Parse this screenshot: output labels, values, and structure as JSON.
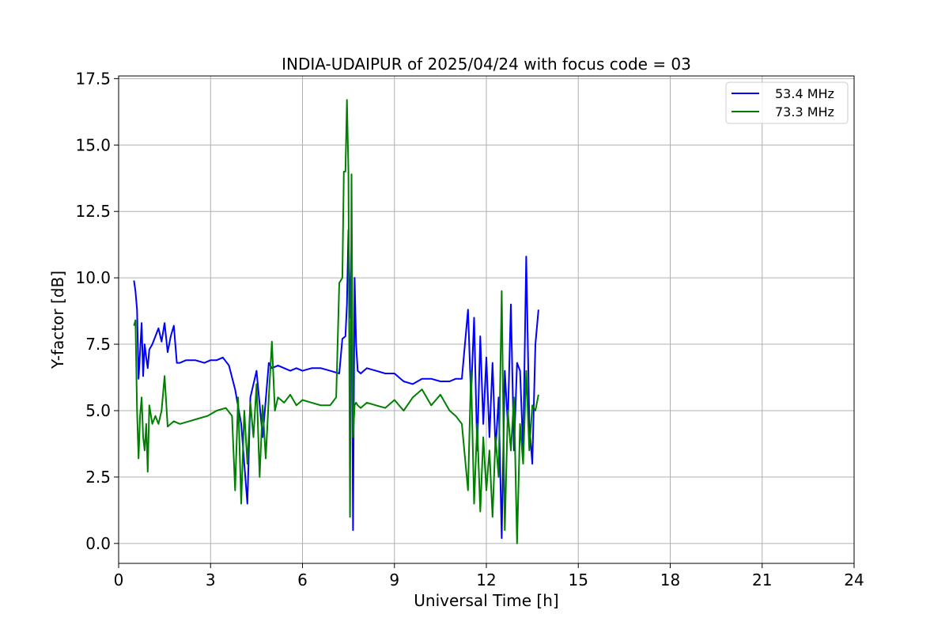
{
  "chart_data": {
    "type": "line",
    "title": "INDIA-UDAIPUR of 2025/04/24 with focus code = 03",
    "xlabel": "Universal Time [h]",
    "ylabel": "Y-factor [dB]",
    "xlim": [
      0,
      24
    ],
    "ylim": [
      -0.75,
      17.6
    ],
    "xticks": [
      0,
      3,
      6,
      9,
      12,
      15,
      18,
      21,
      24
    ],
    "xtick_labels": [
      "0",
      "3",
      "6",
      "9",
      "12",
      "15",
      "18",
      "21",
      "24"
    ],
    "yticks": [
      0.0,
      2.5,
      5.0,
      7.5,
      10.0,
      12.5,
      15.0,
      17.5
    ],
    "ytick_labels": [
      "0.0",
      "2.5",
      "5.0",
      "7.5",
      "10.0",
      "12.5",
      "15.0",
      "17.5"
    ],
    "grid": true,
    "legend_position": "top-right",
    "series": [
      {
        "name": "53.4 MHz",
        "color": "#0000ff",
        "x": [
          0.5,
          0.55,
          0.6,
          0.65,
          0.7,
          0.75,
          0.8,
          0.85,
          0.9,
          0.95,
          1.0,
          1.1,
          1.2,
          1.3,
          1.4,
          1.5,
          1.6,
          1.7,
          1.8,
          1.9,
          2.0,
          2.2,
          2.5,
          2.8,
          3.0,
          3.2,
          3.4,
          3.6,
          3.8,
          4.0,
          4.1,
          4.2,
          4.3,
          4.5,
          4.7,
          4.9,
          5.0,
          5.2,
          5.4,
          5.6,
          5.8,
          6.0,
          6.3,
          6.6,
          6.9,
          7.2,
          7.3,
          7.4,
          7.45,
          7.5,
          7.55,
          7.6,
          7.65,
          7.7,
          7.75,
          7.8,
          7.9,
          8.1,
          8.4,
          8.7,
          9.0,
          9.3,
          9.6,
          9.9,
          10.2,
          10.5,
          10.8,
          11.0,
          11.2,
          11.4,
          11.5,
          11.6,
          11.7,
          11.8,
          11.9,
          12.0,
          12.1,
          12.2,
          12.3,
          12.4,
          12.5,
          12.6,
          12.7,
          12.8,
          12.9,
          13.0,
          13.1,
          13.2,
          13.3,
          13.4,
          13.5,
          13.6,
          13.7
        ],
        "y": [
          9.9,
          9.5,
          8.8,
          6.2,
          7.2,
          8.3,
          6.3,
          7.5,
          7.0,
          6.6,
          7.3,
          7.5,
          7.8,
          8.1,
          7.6,
          8.3,
          7.2,
          7.8,
          8.2,
          6.8,
          6.8,
          6.9,
          6.9,
          6.8,
          6.9,
          6.9,
          7.0,
          6.7,
          5.8,
          4.5,
          3.0,
          1.5,
          5.5,
          6.5,
          4.0,
          6.8,
          6.6,
          6.7,
          6.6,
          6.5,
          6.6,
          6.5,
          6.6,
          6.6,
          6.5,
          6.4,
          7.7,
          7.8,
          9.0,
          11.8,
          8.5,
          11.0,
          0.5,
          10.0,
          7.5,
          6.5,
          6.4,
          6.6,
          6.5,
          6.4,
          6.4,
          6.1,
          6.0,
          6.2,
          6.2,
          6.1,
          6.1,
          6.2,
          6.2,
          8.8,
          5.5,
          8.5,
          3.5,
          7.8,
          4.5,
          7.0,
          4.0,
          6.8,
          3.5,
          5.5,
          0.2,
          6.5,
          4.5,
          9.0,
          3.5,
          6.8,
          6.5,
          3.5,
          10.8,
          4.5,
          3.0,
          7.5,
          8.8
        ]
      },
      {
        "name": "73.3 MHz",
        "color": "#008000",
        "x": [
          0.5,
          0.55,
          0.6,
          0.65,
          0.7,
          0.75,
          0.8,
          0.85,
          0.9,
          0.95,
          1.0,
          1.1,
          1.2,
          1.3,
          1.4,
          1.5,
          1.6,
          1.8,
          2.0,
          2.3,
          2.6,
          2.9,
          3.2,
          3.5,
          3.7,
          3.8,
          3.9,
          4.0,
          4.1,
          4.2,
          4.3,
          4.4,
          4.5,
          4.6,
          4.7,
          4.8,
          4.9,
          5.0,
          5.1,
          5.2,
          5.4,
          5.6,
          5.8,
          6.0,
          6.3,
          6.6,
          6.9,
          7.1,
          7.2,
          7.3,
          7.35,
          7.4,
          7.45,
          7.5,
          7.55,
          7.6,
          7.65,
          7.7,
          7.75,
          7.8,
          7.9,
          8.1,
          8.4,
          8.7,
          9.0,
          9.3,
          9.6,
          9.9,
          10.2,
          10.5,
          10.8,
          11.0,
          11.2,
          11.4,
          11.5,
          11.6,
          11.7,
          11.8,
          11.9,
          12.0,
          12.1,
          12.2,
          12.3,
          12.4,
          12.5,
          12.6,
          12.7,
          12.8,
          12.9,
          13.0,
          13.1,
          13.2,
          13.3,
          13.4,
          13.5,
          13.6,
          13.7
        ],
        "y": [
          8.2,
          8.4,
          5.0,
          3.2,
          4.8,
          5.5,
          4.0,
          3.5,
          4.5,
          2.7,
          5.2,
          4.5,
          4.8,
          4.5,
          5.0,
          6.3,
          4.4,
          4.6,
          4.5,
          4.6,
          4.7,
          4.8,
          5.0,
          5.1,
          4.8,
          2.0,
          5.5,
          1.5,
          5.0,
          3.0,
          5.3,
          4.0,
          6.0,
          2.5,
          5.2,
          3.2,
          5.5,
          7.6,
          5.0,
          5.5,
          5.3,
          5.6,
          5.2,
          5.4,
          5.3,
          5.2,
          5.2,
          5.5,
          9.8,
          10.0,
          14.0,
          14.0,
          16.7,
          14.0,
          1.0,
          13.9,
          4.0,
          5.2,
          5.3,
          5.2,
          5.1,
          5.3,
          5.2,
          5.1,
          5.4,
          5.0,
          5.5,
          5.8,
          5.2,
          5.6,
          5.0,
          4.8,
          4.5,
          2.0,
          6.5,
          1.5,
          4.5,
          1.2,
          4.0,
          2.0,
          3.5,
          1.0,
          4.0,
          2.5,
          9.5,
          0.5,
          5.0,
          3.5,
          5.5,
          0.0,
          4.5,
          3.0,
          6.5,
          3.5,
          5.2,
          5.0,
          5.6
        ]
      }
    ]
  }
}
